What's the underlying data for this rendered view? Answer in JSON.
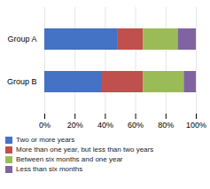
{
  "chart_data": {
    "type": "bar",
    "orientation": "horizontal",
    "stacked": true,
    "categories": [
      "Group A",
      "Group B"
    ],
    "series": [
      {
        "name": "Two or more years",
        "color": "#4472C4",
        "values": [
          48,
          38
        ]
      },
      {
        "name": "More than one year, but less than two years",
        "color": "#C0504D",
        "values": [
          17,
          27
        ]
      },
      {
        "name": "Between six months and one year",
        "color": "#9BBB59",
        "values": [
          23,
          27
        ]
      },
      {
        "name": "Less than six months",
        "color": "#8064A2",
        "values": [
          12,
          8
        ]
      }
    ],
    "xlim": [
      0,
      100
    ],
    "xticks": [
      {
        "value": 0,
        "label": "0%"
      },
      {
        "value": 20,
        "label": "20%"
      },
      {
        "value": 40,
        "label": "40%"
      },
      {
        "value": 60,
        "label": "60%"
      },
      {
        "value": 80,
        "label": "80%"
      },
      {
        "value": 100,
        "label": "100%"
      }
    ],
    "grid": true,
    "legend": "bottom"
  }
}
